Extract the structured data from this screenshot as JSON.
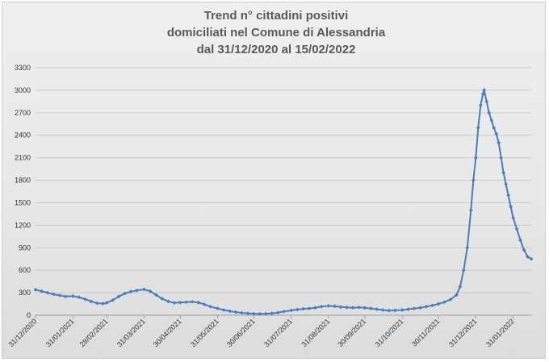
{
  "chart_data": {
    "type": "line",
    "title": [
      "Trend n° cittadini positivi",
      "domiciliati nel Comune di Alessandria",
      "dal 31/12/2020 al 15/02/2022"
    ],
    "xlabel": "",
    "ylabel": "",
    "ylim": [
      0,
      3300
    ],
    "yticks": [
      0,
      300,
      600,
      900,
      1200,
      1500,
      1800,
      2100,
      2400,
      2700,
      3000,
      3300
    ],
    "x_range": [
      "31/12/2020",
      "15/02/2022"
    ],
    "xticks": [
      "31/12/2020",
      "31/01/2021",
      "28/02/2021",
      "31/03/2021",
      "30/04/2021",
      "31/05/2021",
      "30/06/2021",
      "31/07/2021",
      "31/08/2021",
      "30/09/2021",
      "31/10/2021",
      "30/11/2021",
      "31/12/2021",
      "31/01/2022"
    ],
    "grid": true,
    "legend": "none",
    "line_color": "#4a7ebb",
    "series": [
      {
        "points": [
          [
            "31/12/2020",
            340
          ],
          [
            "05/01/2021",
            320
          ],
          [
            "10/01/2021",
            300
          ],
          [
            "15/01/2021",
            280
          ],
          [
            "20/01/2021",
            265
          ],
          [
            "25/01/2021",
            250
          ],
          [
            "31/01/2021",
            255
          ],
          [
            "05/02/2021",
            240
          ],
          [
            "10/02/2021",
            215
          ],
          [
            "15/02/2021",
            185
          ],
          [
            "20/02/2021",
            160
          ],
          [
            "25/02/2021",
            155
          ],
          [
            "28/02/2021",
            165
          ],
          [
            "05/03/2021",
            200
          ],
          [
            "10/03/2021",
            250
          ],
          [
            "15/03/2021",
            290
          ],
          [
            "20/03/2021",
            315
          ],
          [
            "25/03/2021",
            330
          ],
          [
            "31/03/2021",
            345
          ],
          [
            "05/04/2021",
            320
          ],
          [
            "10/04/2021",
            270
          ],
          [
            "15/04/2021",
            220
          ],
          [
            "20/04/2021",
            185
          ],
          [
            "25/04/2021",
            165
          ],
          [
            "30/04/2021",
            170
          ],
          [
            "05/05/2021",
            175
          ],
          [
            "10/05/2021",
            180
          ],
          [
            "15/05/2021",
            170
          ],
          [
            "20/05/2021",
            145
          ],
          [
            "25/05/2021",
            115
          ],
          [
            "31/05/2021",
            90
          ],
          [
            "05/06/2021",
            70
          ],
          [
            "10/06/2021",
            55
          ],
          [
            "15/06/2021",
            42
          ],
          [
            "20/06/2021",
            32
          ],
          [
            "25/06/2021",
            25
          ],
          [
            "30/06/2021",
            20
          ],
          [
            "05/07/2021",
            18
          ],
          [
            "10/07/2021",
            20
          ],
          [
            "15/07/2021",
            25
          ],
          [
            "20/07/2021",
            35
          ],
          [
            "25/07/2021",
            50
          ],
          [
            "31/07/2021",
            65
          ],
          [
            "05/08/2021",
            75
          ],
          [
            "10/08/2021",
            85
          ],
          [
            "15/08/2021",
            90
          ],
          [
            "20/08/2021",
            100
          ],
          [
            "25/08/2021",
            115
          ],
          [
            "31/08/2021",
            125
          ],
          [
            "05/09/2021",
            120
          ],
          [
            "10/09/2021",
            110
          ],
          [
            "15/09/2021",
            105
          ],
          [
            "20/09/2021",
            100
          ],
          [
            "25/09/2021",
            105
          ],
          [
            "30/09/2021",
            100
          ],
          [
            "05/10/2021",
            90
          ],
          [
            "10/10/2021",
            80
          ],
          [
            "15/10/2021",
            70
          ],
          [
            "20/10/2021",
            62
          ],
          [
            "25/10/2021",
            65
          ],
          [
            "31/10/2021",
            70
          ],
          [
            "05/11/2021",
            80
          ],
          [
            "10/11/2021",
            90
          ],
          [
            "15/11/2021",
            100
          ],
          [
            "20/11/2021",
            115
          ],
          [
            "25/11/2021",
            130
          ],
          [
            "30/11/2021",
            150
          ],
          [
            "05/12/2021",
            175
          ],
          [
            "10/12/2021",
            210
          ],
          [
            "15/12/2021",
            270
          ],
          [
            "18/12/2021",
            380
          ],
          [
            "21/12/2021",
            600
          ],
          [
            "24/12/2021",
            900
          ],
          [
            "27/12/2021",
            1400
          ],
          [
            "29/12/2021",
            1800
          ],
          [
            "31/12/2021",
            2100
          ],
          [
            "02/01/2022",
            2500
          ],
          [
            "04/01/2022",
            2800
          ],
          [
            "06/01/2022",
            2950
          ],
          [
            "07/01/2022",
            3000
          ],
          [
            "09/01/2022",
            2850
          ],
          [
            "11/01/2022",
            2700
          ],
          [
            "13/01/2022",
            2600
          ],
          [
            "15/01/2022",
            2500
          ],
          [
            "17/01/2022",
            2420
          ],
          [
            "19/01/2022",
            2300
          ],
          [
            "21/01/2022",
            2100
          ],
          [
            "23/01/2022",
            1900
          ],
          [
            "25/01/2022",
            1750
          ],
          [
            "27/01/2022",
            1600
          ],
          [
            "29/01/2022",
            1450
          ],
          [
            "31/01/2022",
            1300
          ],
          [
            "03/02/2022",
            1150
          ],
          [
            "06/02/2022",
            1000
          ],
          [
            "09/02/2022",
            870
          ],
          [
            "12/02/2022",
            780
          ],
          [
            "15/02/2022",
            750
          ]
        ]
      }
    ]
  }
}
